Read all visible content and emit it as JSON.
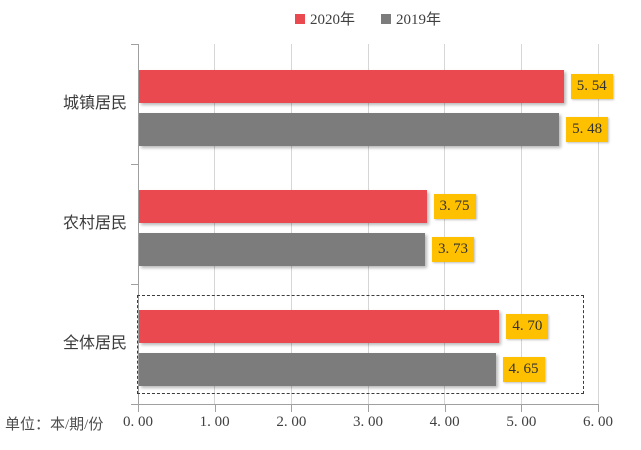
{
  "unit_label": "单位：本/期/份",
  "legend": {
    "position": "top",
    "items": [
      {
        "label": "2020年",
        "color": "#E9494F"
      },
      {
        "label": "2019年",
        "color": "#7C7C7C"
      }
    ]
  },
  "chart_data": {
    "type": "bar",
    "orientation": "horizontal",
    "title": "",
    "xlabel": "",
    "ylabel": "",
    "unit_label": "单位：本/期/份",
    "categories": [
      "城镇居民",
      "农村居民",
      "全体居民"
    ],
    "series": [
      {
        "name": "2020年",
        "color": "#E9494F",
        "values": [
          5.54,
          3.75,
          4.7
        ],
        "labels": [
          "5.54",
          "3.75",
          "4.70"
        ]
      },
      {
        "name": "2019年",
        "color": "#7C7C7C",
        "values": [
          5.48,
          3.73,
          4.65
        ],
        "labels": [
          "5.48",
          "3.73",
          "4.65"
        ]
      }
    ],
    "xlim": [
      0,
      6
    ],
    "x_ticks": [
      "0.00",
      "1.00",
      "2.00",
      "3.00",
      "4.00",
      "5.00",
      "6.00"
    ],
    "grid": true,
    "legend_position": "top-center",
    "data_label_background": "#FFC000",
    "highlight": {
      "category": "全体居民",
      "style": "dashed-box"
    }
  }
}
